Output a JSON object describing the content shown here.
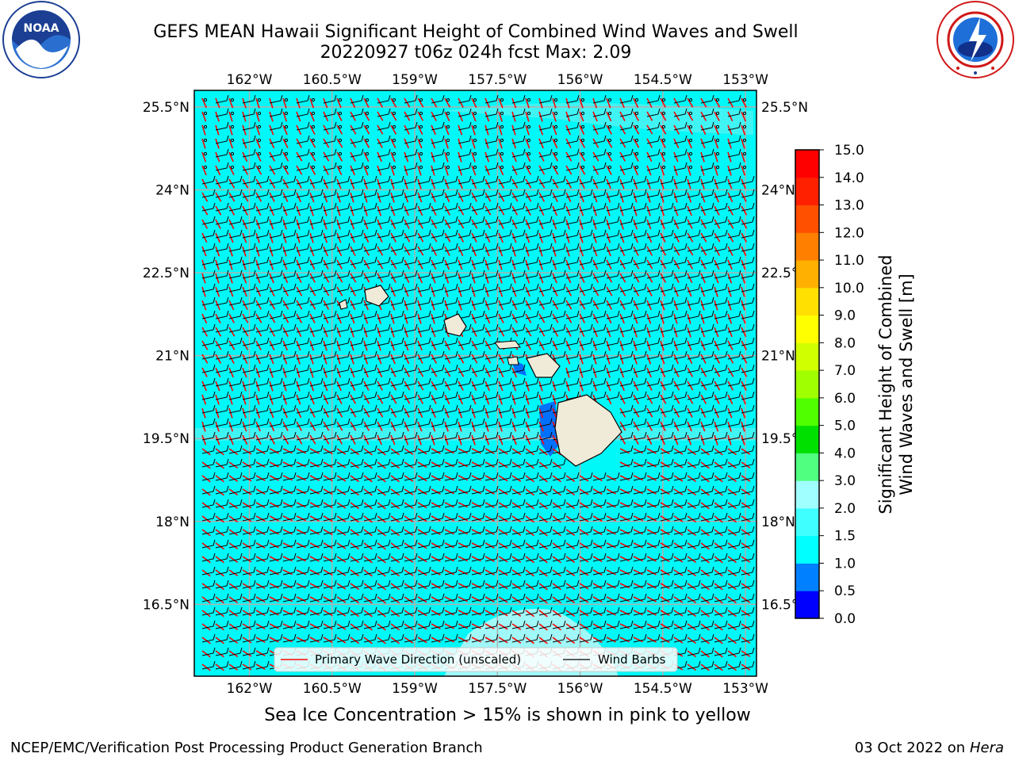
{
  "title_line1": "GEFS MEAN Hawaii Significant Height of Combined Wind Waves and Swell",
  "title_line2": "20220927 t06z 024h fcst   Max: 2.09",
  "note": "Sea Ice Concentration > 15% is shown in pink to yellow",
  "footer_left": "NCEP/EMC/Verification Post Processing Product Generation Branch",
  "footer_right_date": "03 Oct 2022 on ",
  "footer_right_host": "Hera",
  "logos": {
    "left": "noaa-logo-icon",
    "right": "nws-logo-icon"
  },
  "legend": {
    "wave_label": "Primary Wave Direction (unscaled)",
    "barb_label": "Wind Barbs"
  },
  "chart_data": {
    "type": "heatmap",
    "title": "GEFS MEAN Hawaii Significant Height of Combined Wind Waves and Swell",
    "subtitle": "20220927 t06z 024h fcst   Max: 2.09",
    "max_value": 2.09,
    "x_ticks": [
      "162°W",
      "160.5°W",
      "159°W",
      "157.5°W",
      "156°W",
      "154.5°W",
      "153°W"
    ],
    "x_tick_values": [
      -162,
      -160.5,
      -159,
      -157.5,
      -156,
      -154.5,
      -153
    ],
    "y_ticks": [
      "25.5°N",
      "24°N",
      "22.5°N",
      "21°N",
      "19.5°N",
      "18°N",
      "16.5°N"
    ],
    "y_tick_values": [
      25.5,
      24,
      22.5,
      21,
      19.5,
      18,
      16.5
    ],
    "xlim": [
      -163,
      -152.8
    ],
    "ylim": [
      15.2,
      25.8
    ],
    "grid": true,
    "colorbar": {
      "label_line1": "Significant Height of Combined",
      "label_line2": "Wind Waves and Swell [m]",
      "ticks": [
        "0.0",
        "0.5",
        "1.0",
        "1.5",
        "2.0",
        "3.0",
        "4.0",
        "5.0",
        "6.0",
        "7.0",
        "8.0",
        "9.0",
        "10.0",
        "11.0",
        "12.0",
        "13.0",
        "14.0",
        "15.0"
      ],
      "bounds": [
        0,
        0.5,
        1.0,
        1.5,
        2.0,
        3.0,
        4.0,
        5.0,
        6.0,
        7.0,
        8.0,
        9.0,
        10.0,
        11.0,
        12.0,
        13.0,
        14.0,
        15.0
      ],
      "colors": [
        "#0000ff",
        "#0080ff",
        "#00ffff",
        "#40ffff",
        "#a0ffff",
        "#50ff80",
        "#00e000",
        "#50ff00",
        "#a0ff00",
        "#d0ff00",
        "#ffff00",
        "#ffe000",
        "#ffb000",
        "#ff8000",
        "#ff5000",
        "#ff2000",
        "#ff0000"
      ]
    },
    "field_colors": {
      "ocean": "#00f8f8",
      "ocean_light": "#40f4f4",
      "ocean_pale": "#a0f8f8",
      "land": "#f0ead8",
      "shallow": "#0070ff",
      "wave_arrow": "#ff0000",
      "barb": "#000000"
    }
  }
}
